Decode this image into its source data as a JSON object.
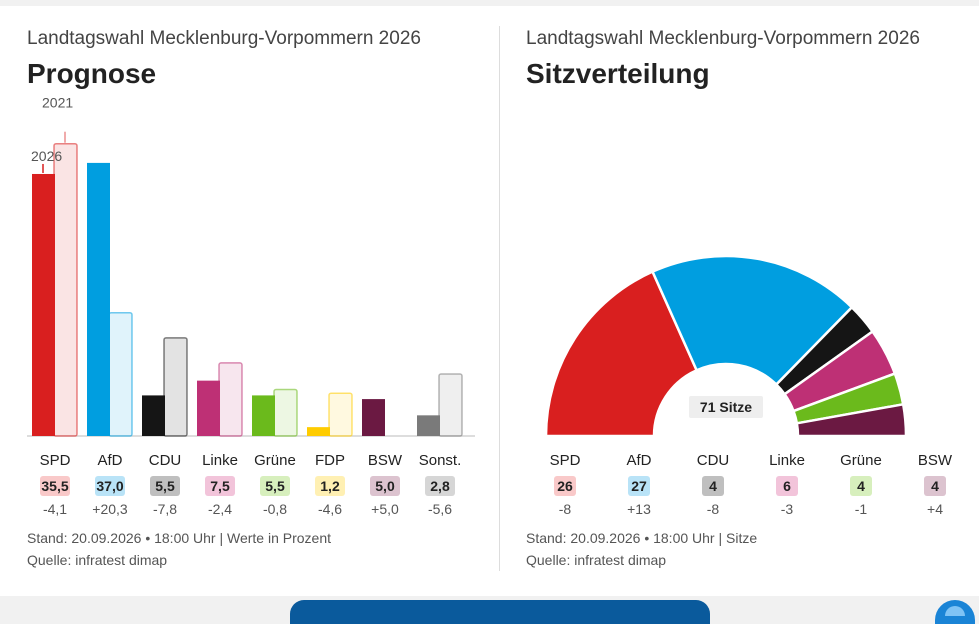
{
  "colors": {
    "SPD": "#d91f1f",
    "AfD": "#009ee0",
    "CDU": "#151515",
    "Linke": "#be3075",
    "Grüne": "#6bba1c",
    "FDP": "#ffcc00",
    "BSW": "#6b1942",
    "Sonst.": "#7a7a7a"
  },
  "badge_colors": {
    "SPD": "#f9c9c9",
    "AfD": "#b9e3f7",
    "CDU": "#bfbfbf",
    "Linke": "#f2c4da",
    "Grüne": "#d7efbd",
    "FDP": "#fff0b3",
    "BSW": "#dcc3cf",
    "Sonst.": "#d6d6d6"
  },
  "prognose": {
    "supertitle": "Landtagswahl Mecklenburg-Vorpommern 2026",
    "title": "Prognose",
    "footer_stand": "Stand: 20.09.2026 • 18:00 Uhr | Werte in Prozent",
    "footer_source": "Quelle: infratest dimap"
  },
  "sitze": {
    "supertitle": "Landtagswahl Mecklenburg-Vorpommern 2026",
    "title": "Sitzverteilung",
    "footer_stand": "Stand: 20.09.2026 • 18:00 Uhr | Sitze",
    "footer_source": "Quelle: infratest dimap"
  },
  "chart_data": [
    {
      "type": "bar",
      "title": "Prognose",
      "categories": [
        "SPD",
        "AfD",
        "CDU",
        "Linke",
        "Grüne",
        "FDP",
        "BSW",
        "Sonst."
      ],
      "series": [
        {
          "name": "2026",
          "values": [
            35.5,
            37.0,
            5.5,
            7.5,
            5.5,
            1.2,
            5.0,
            2.8
          ]
        },
        {
          "name": "2021",
          "values": [
            39.6,
            16.7,
            13.3,
            9.9,
            6.3,
            5.8,
            0.0,
            8.4
          ]
        }
      ],
      "value_labels": [
        "35,5",
        "37,0",
        "5,5",
        "7,5",
        "5,5",
        "1,2",
        "5,0",
        "2,8"
      ],
      "diff_labels": [
        "-4,1",
        "+20,3",
        "-7,8",
        "-2,4",
        "-0,8",
        "-4,6",
        "+5,0",
        "-5,6"
      ],
      "ylim": [
        0,
        42
      ]
    },
    {
      "type": "pie",
      "subtype": "parliament-half-donut",
      "title": "Sitzverteilung",
      "center_label": "71 Sitze",
      "categories": [
        "SPD",
        "AfD",
        "CDU",
        "Linke",
        "Grüne",
        "BSW"
      ],
      "values": [
        26,
        27,
        4,
        6,
        4,
        4
      ],
      "diff_labels": [
        "-8",
        "+13",
        "-8",
        "-3",
        "-1",
        "+4"
      ]
    }
  ]
}
